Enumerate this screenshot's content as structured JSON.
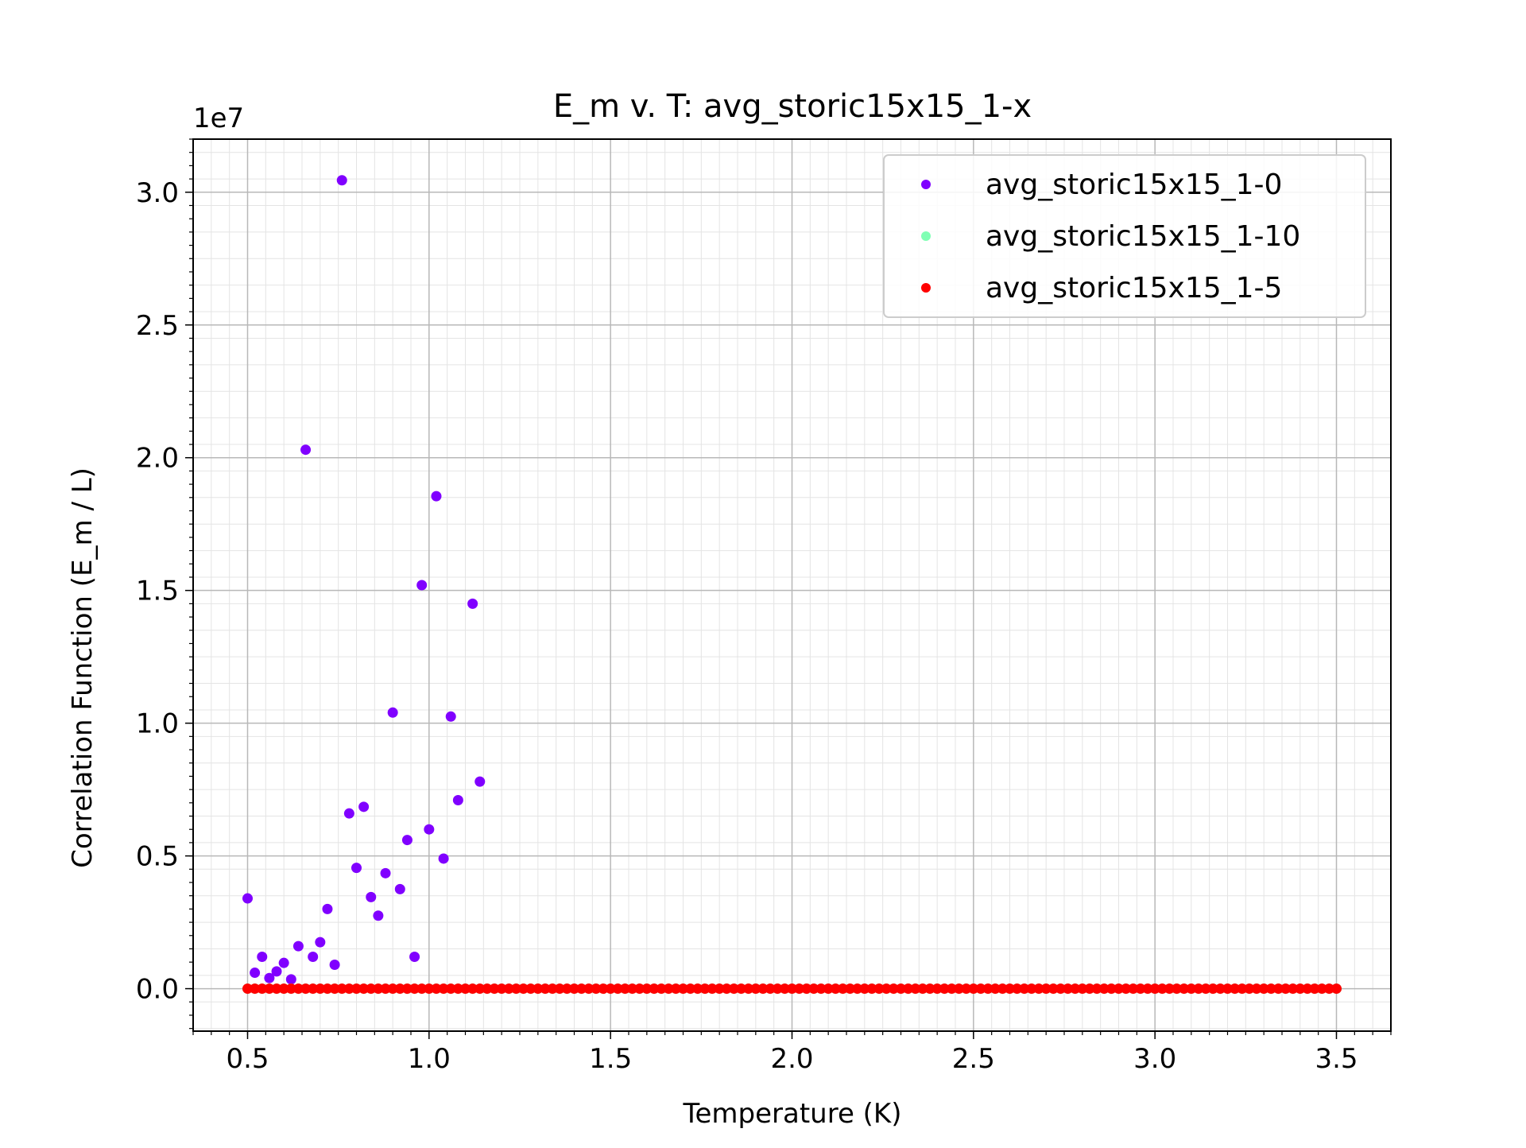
{
  "chart_data": {
    "type": "scatter",
    "title": "E_m v. T: avg_storic15x15_1-x",
    "xlabel": "Temperature (K)",
    "ylabel": "Correlation Function (E_m / L)",
    "y_offset_text": "1e7",
    "xlim": [
      0.35,
      3.65
    ],
    "ylim": [
      -0.16,
      3.2
    ],
    "y_scale_factor": 10000000,
    "x_ticks": [
      "0.5",
      "1.0",
      "1.5",
      "2.0",
      "2.5",
      "3.0",
      "3.5"
    ],
    "x_tick_values": [
      0.5,
      1.0,
      1.5,
      2.0,
      2.5,
      3.0,
      3.5
    ],
    "y_ticks": [
      "0.0",
      "0.5",
      "1.0",
      "1.5",
      "2.0",
      "2.5",
      "3.0"
    ],
    "y_tick_values": [
      0.0,
      0.5,
      1.0,
      1.5,
      2.0,
      2.5,
      3.0
    ],
    "grid": true,
    "minor_grid": true,
    "legend_position": "top-right",
    "series": [
      {
        "name": "avg_storic15x15_1-0",
        "color": "#8000ff",
        "x": [
          0.5,
          0.52,
          0.54,
          0.56,
          0.58,
          0.6,
          0.62,
          0.64,
          0.66,
          0.68,
          0.7,
          0.72,
          0.74,
          0.76,
          0.78,
          0.8,
          0.82,
          0.84,
          0.86,
          0.88,
          0.9,
          0.92,
          0.94,
          0.96,
          0.98,
          1.0,
          1.02,
          1.04,
          1.06,
          1.08,
          1.12,
          1.14
        ],
        "y": [
          0.34,
          0.06,
          0.12,
          0.04,
          0.065,
          0.097,
          0.035,
          0.16,
          2.03,
          0.12,
          0.175,
          0.3,
          0.09,
          3.045,
          0.66,
          0.455,
          0.685,
          0.345,
          0.275,
          0.435,
          1.04,
          0.375,
          0.56,
          0.12,
          1.52,
          0.6,
          1.855,
          0.49,
          1.025,
          0.71,
          1.45,
          0.78
        ]
      },
      {
        "name": "avg_storic15x15_1-10",
        "color": "#80ffb4",
        "x_range": [
          0.5,
          3.5
        ],
        "x_step": 0.02,
        "y_constant": 0.0
      },
      {
        "name": "avg_storic15x15_1-5",
        "color": "#ff0000",
        "x_range": [
          0.5,
          3.5
        ],
        "x_step": 0.02,
        "y_constant": 0.0
      }
    ]
  }
}
